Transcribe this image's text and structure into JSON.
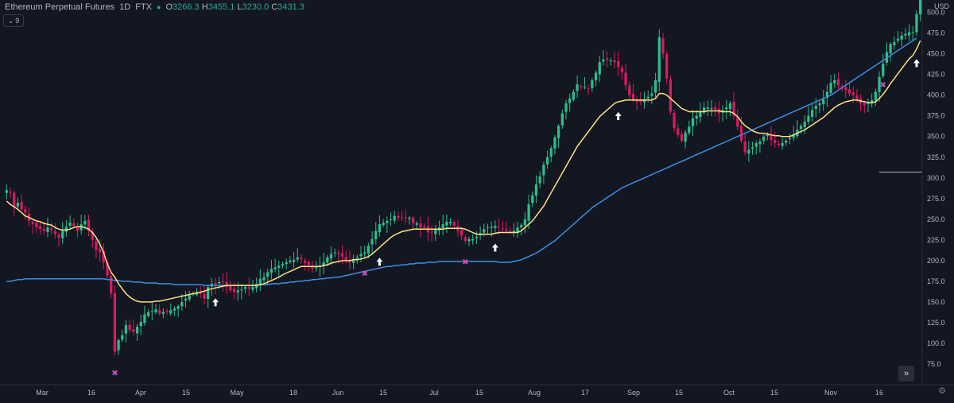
{
  "header": {
    "symbol": "Ethereum Perpetual Futures",
    "interval": "1D",
    "exchange": "FTX",
    "ohlc": {
      "o_label": "O",
      "o": "3266.3",
      "h_label": "H",
      "h": "3455.1",
      "l_label": "L",
      "l": "3230.0",
      "c_label": "C",
      "c": "3431.3"
    },
    "indicator_toggle": "9"
  },
  "currency": "USD",
  "colors": {
    "up": "#26a69a",
    "upBody": "#2dbd8c",
    "down": "#d81b60",
    "ema": "#ffe082",
    "sma": "#3d8fe0",
    "bg": "#131722",
    "axis": "#b2b5be"
  },
  "chart_data": {
    "type": "candlestick",
    "y_unit": "price (hundreds-scaled axis label)",
    "ylim": [
      50,
      515
    ],
    "y_ticks": [
      75.0,
      100.0,
      125.0,
      150.0,
      175.0,
      200.0,
      225.0,
      250.0,
      275.0,
      300.0,
      325.0,
      350.0,
      375.0,
      400.0,
      425.0,
      450.0,
      475.0,
      500.0
    ],
    "x_ticks": [
      "Mar",
      "16",
      "Apr",
      "15",
      "May",
      "18",
      "Jun",
      "15",
      "Jul",
      "15",
      "Aug",
      "17",
      "Sep",
      "15",
      "Oct",
      "15",
      "Nov",
      "16"
    ],
    "closes": [
      285,
      282,
      265,
      270,
      262,
      258,
      248,
      244,
      240,
      238,
      236,
      240,
      237,
      232,
      228,
      236,
      241,
      246,
      242,
      236,
      244,
      248,
      236,
      225,
      213,
      210,
      198,
      182,
      160,
      90,
      104,
      110,
      122,
      116,
      114,
      120,
      126,
      135,
      138,
      139,
      141,
      136,
      138,
      138,
      140,
      142,
      145,
      150,
      154,
      158,
      160,
      162,
      160,
      154,
      168,
      172,
      171,
      174,
      174,
      168,
      164,
      162,
      164,
      165,
      168,
      166,
      168,
      172,
      178,
      180,
      186,
      190,
      192,
      194,
      196,
      198,
      200,
      201,
      204,
      202,
      197,
      195,
      190,
      192,
      194,
      198,
      204,
      208,
      210,
      208,
      205,
      200,
      198,
      202,
      204,
      208,
      210,
      218,
      226,
      236,
      244,
      246,
      248,
      250,
      254,
      252,
      252,
      252,
      252,
      245,
      245,
      240,
      240,
      234,
      234,
      238,
      240,
      244,
      247,
      247,
      242,
      236,
      230,
      224,
      226,
      226,
      229,
      233,
      238,
      240,
      241,
      242,
      240,
      238,
      236,
      234,
      236,
      240,
      243,
      250,
      268,
      279,
      292,
      302,
      316,
      325,
      336,
      349,
      363,
      378,
      390,
      396,
      404,
      413,
      410,
      410,
      408,
      418,
      427,
      440,
      443,
      443,
      442,
      440,
      434,
      428,
      412,
      400,
      394,
      392,
      392,
      395,
      398,
      402,
      418,
      470,
      450,
      420,
      380,
      360,
      352,
      345,
      355,
      362,
      372,
      375,
      380,
      385,
      385,
      384,
      383,
      378,
      382,
      385,
      390,
      375,
      362,
      345,
      331,
      334,
      337,
      342,
      344,
      350,
      352,
      346,
      342,
      340,
      342,
      345,
      348,
      352,
      358,
      363,
      368,
      375,
      382,
      387,
      390,
      395,
      404,
      415,
      418,
      412,
      409,
      406,
      402,
      400,
      395,
      390,
      388,
      390,
      394,
      404,
      422,
      438,
      452,
      462,
      464,
      468,
      472,
      474,
      476,
      476,
      498,
      526
    ],
    "ema": [
      272,
      268,
      265,
      262,
      258,
      254,
      252,
      250,
      248,
      247,
      245,
      244,
      243,
      240,
      238,
      237,
      237,
      238,
      240,
      241,
      241,
      240,
      238,
      234,
      228,
      220,
      210,
      196,
      186,
      180,
      172,
      166,
      160,
      156,
      153,
      151,
      150,
      150,
      150,
      150,
      151,
      151,
      152,
      153,
      154,
      155,
      156,
      157,
      158,
      159,
      160,
      161,
      162,
      163,
      165,
      166,
      167,
      168,
      169,
      170,
      170,
      170,
      170,
      170,
      170,
      170,
      170,
      170,
      171,
      172,
      174,
      176,
      178,
      180,
      183,
      185,
      187,
      189,
      191,
      193,
      193,
      193,
      193,
      193,
      193,
      194,
      195,
      197,
      198,
      199,
      200,
      200,
      200,
      201,
      201,
      202,
      203,
      205,
      208,
      212,
      216,
      220,
      224,
      228,
      231,
      233,
      235,
      236,
      237,
      238,
      238,
      238,
      238,
      238,
      238,
      238,
      238,
      238,
      239,
      239,
      239,
      239,
      239,
      238,
      236,
      234,
      232,
      232,
      232,
      232,
      232,
      233,
      234,
      234,
      234,
      234,
      234,
      234,
      236,
      240,
      244,
      248,
      254,
      260,
      266,
      274,
      282,
      290,
      298,
      306,
      314,
      322,
      330,
      338,
      344,
      350,
      356,
      362,
      368,
      374,
      378,
      382,
      386,
      390,
      392,
      393,
      394,
      394,
      394,
      394,
      394,
      394,
      394,
      394,
      396,
      402,
      402,
      400,
      396,
      392,
      388,
      384,
      382,
      380,
      380,
      380,
      380,
      380,
      381,
      381,
      381,
      381,
      380,
      380,
      380,
      378,
      374,
      368,
      363,
      360,
      357,
      355,
      354,
      354,
      353,
      352,
      351,
      351,
      350,
      350,
      350,
      352,
      354,
      356,
      358,
      361,
      364,
      367,
      370,
      373,
      377,
      381,
      385,
      388,
      390,
      392,
      393,
      394,
      394,
      393,
      392,
      391,
      391,
      392,
      396,
      401,
      407,
      414,
      420,
      426,
      432,
      438,
      444,
      448,
      456,
      466
    ],
    "sma": [
      175,
      175,
      176,
      177,
      177,
      178,
      178,
      178,
      178,
      178,
      178,
      178,
      178,
      178,
      178,
      178,
      178,
      178,
      178,
      178,
      178,
      178,
      178,
      178,
      178,
      178,
      178,
      177,
      177,
      176,
      176,
      175,
      175,
      175,
      174,
      174,
      174,
      173,
      173,
      173,
      173,
      172,
      172,
      172,
      172,
      171,
      171,
      171,
      171,
      171,
      171,
      171,
      171,
      170,
      170,
      170,
      170,
      170,
      170,
      170,
      170,
      170,
      170,
      170,
      170,
      170,
      170,
      171,
      171,
      171,
      171,
      172,
      172,
      172,
      173,
      173,
      174,
      174,
      175,
      175,
      176,
      176,
      177,
      177,
      178,
      178,
      179,
      179,
      180,
      180,
      181,
      182,
      183,
      184,
      185,
      186,
      187,
      188,
      189,
      190,
      191,
      192,
      193,
      193,
      194,
      194,
      195,
      195,
      196,
      196,
      197,
      197,
      197,
      198,
      198,
      198,
      199,
      199,
      199,
      199,
      199,
      199,
      199,
      199,
      199,
      199,
      199,
      199,
      199,
      199,
      199,
      199,
      198,
      198,
      198,
      198,
      199,
      200,
      201,
      203,
      205,
      207,
      209,
      212,
      215,
      218,
      221,
      224,
      228,
      232,
      236,
      240,
      244,
      248,
      252,
      256,
      260,
      264,
      267,
      270,
      273,
      276,
      279,
      282,
      285,
      288,
      290,
      292,
      294,
      296,
      298,
      300,
      302,
      304,
      306,
      308,
      310,
      312,
      314,
      316,
      318,
      320,
      322,
      324,
      326,
      328,
      330,
      332,
      334,
      336,
      338,
      340,
      342,
      344,
      346,
      348,
      350,
      352,
      354,
      356,
      358,
      360,
      362,
      364,
      366,
      368,
      370,
      372,
      374,
      376,
      378,
      380,
      382,
      384,
      386,
      388,
      390,
      392,
      394,
      396,
      398,
      400,
      403,
      406,
      409,
      412,
      415,
      418,
      421,
      424,
      427,
      430,
      433,
      436,
      439,
      442,
      445,
      448,
      451,
      454,
      457,
      460,
      463,
      466,
      469
    ],
    "arrows_at": [
      56,
      100,
      131,
      164,
      244,
      276
    ],
    "crosses_at": [
      29,
      96,
      123,
      235
    ],
    "hline": {
      "y": 307,
      "from": 234,
      "to": 280
    }
  }
}
